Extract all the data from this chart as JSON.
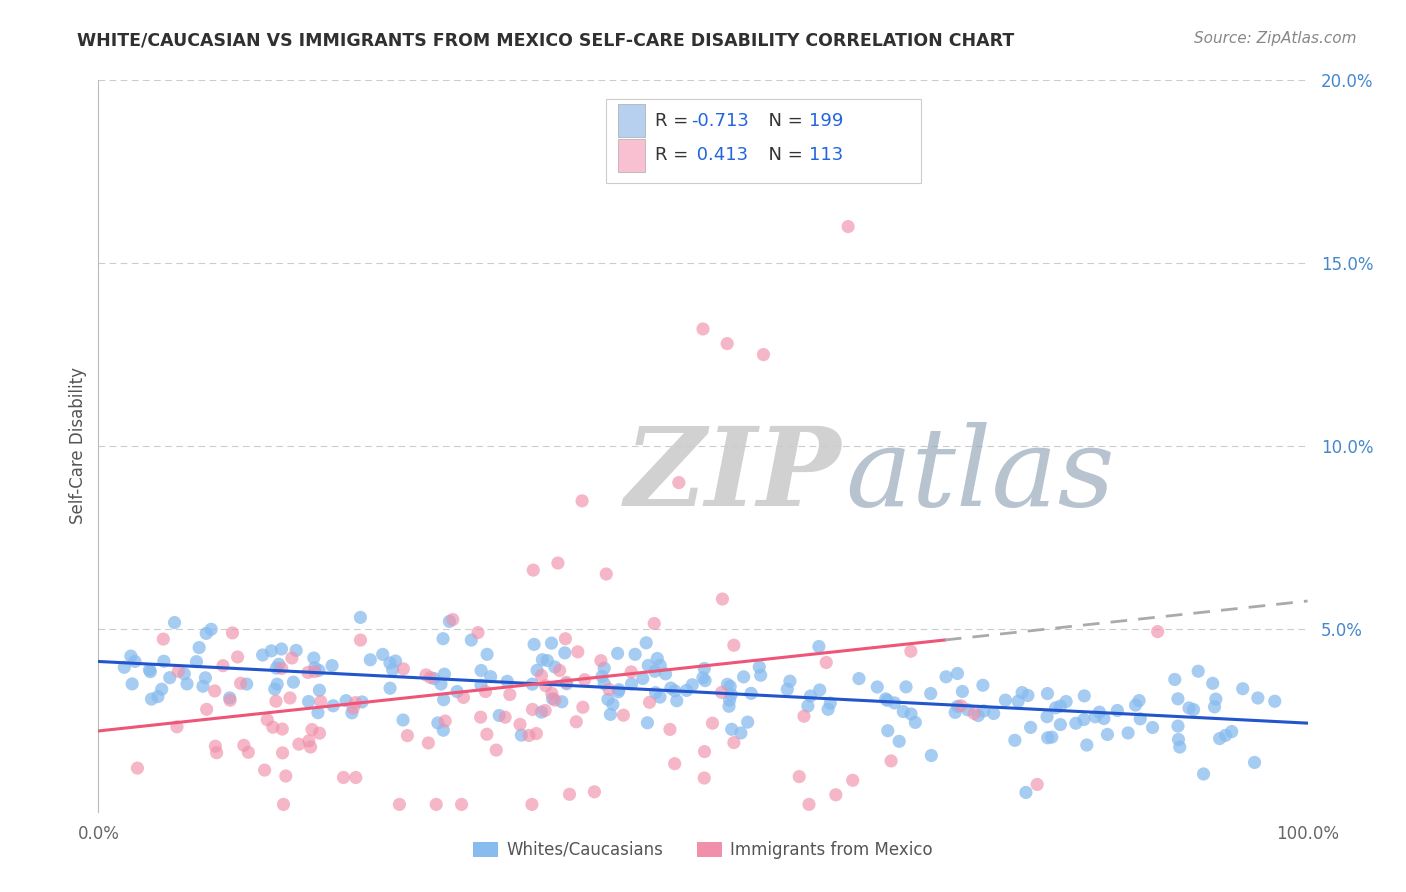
{
  "title": "WHITE/CAUCASIAN VS IMMIGRANTS FROM MEXICO SELF-CARE DISABILITY CORRELATION CHART",
  "source": "Source: ZipAtlas.com",
  "ylabel": "Self-Care Disability",
  "xlim": [
    0,
    100
  ],
  "ylim": [
    0,
    20
  ],
  "legend_entries": [
    {
      "label_r": "R = ",
      "label_val": "-0.713",
      "label_n": "  N = ",
      "label_nval": "199",
      "color": "#b8d0f0"
    },
    {
      "label_r": "R = ",
      "label_val": " 0.413",
      "label_n": "  N = ",
      "label_nval": "113",
      "color": "#f8c0d0"
    }
  ],
  "series1_color": "#88bbee",
  "series2_color": "#f090aa",
  "line1_color": "#2255cc",
  "line2_color": "#ee5577",
  "line2_ext_color": "#aaaaaa",
  "watermark_zip_color": "#cccccc",
  "watermark_atlas_color": "#99aabb",
  "background_color": "#ffffff",
  "grid_color": "#cccccc",
  "right_tick_color": "#4488cc",
  "title_color": "#303030",
  "source_color": "#888888",
  "bottom_legend_color": "#555555",
  "seed": 7
}
